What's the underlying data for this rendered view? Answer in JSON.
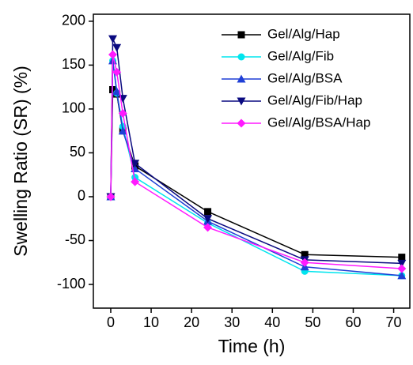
{
  "chart_data": {
    "type": "line",
    "xlabel": "Time (h)",
    "ylabel": "Swelling Ratio (SR) (%)",
    "x": [
      0,
      0.5,
      1.5,
      3,
      6,
      24,
      48,
      72
    ],
    "series": [
      {
        "name": "Gel/Alg/Hap",
        "color": "#000000",
        "marker": "square",
        "values": [
          0,
          122,
          117,
          75,
          35,
          -17,
          -66,
          -69
        ]
      },
      {
        "name": "Gel/Alg/Fib",
        "color": "#00e5ee",
        "marker": "circle",
        "values": [
          0,
          155,
          118,
          80,
          22,
          -30,
          -85,
          -90
        ]
      },
      {
        "name": "Gel/Alg/BSA",
        "color": "#1f3fd6",
        "marker": "triangle-up",
        "values": [
          0,
          155,
          120,
          75,
          32,
          -28,
          -80,
          -90
        ]
      },
      {
        "name": "Gel/Alg/Fib/Hap",
        "color": "#0a0a80",
        "marker": "triangle-down",
        "values": [
          0,
          180,
          170,
          112,
          38,
          -25,
          -72,
          -76
        ]
      },
      {
        "name": "Gel/Alg/BSA/Hap",
        "color": "#ff1aff",
        "marker": "diamond",
        "values": [
          0,
          162,
          142,
          95,
          17,
          -35,
          -75,
          -82
        ]
      }
    ],
    "xlim": [
      -4.3,
      74
    ],
    "xticks": [
      0,
      10,
      20,
      30,
      40,
      50,
      60,
      70
    ],
    "ylim": [
      -127,
      208
    ],
    "yticks": [
      -100,
      -50,
      0,
      50,
      100,
      150,
      200
    ]
  }
}
